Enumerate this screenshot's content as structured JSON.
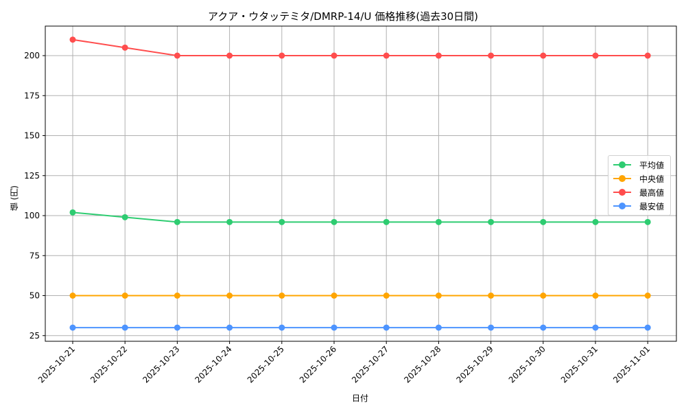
{
  "chart_data": {
    "type": "line",
    "title": "アクア・ウタッテミタ/DMRP-14/U 価格推移(過去30日間)",
    "xlabel": "日付",
    "ylabel": "値 (円)",
    "categories": [
      "2025-10-21",
      "2025-10-22",
      "2025-10-23",
      "2025-10-24",
      "2025-10-25",
      "2025-10-26",
      "2025-10-27",
      "2025-10-28",
      "2025-10-29",
      "2025-10-30",
      "2025-10-31",
      "2025-11-01"
    ],
    "series": [
      {
        "name": "平均値",
        "color": "#2ecc71",
        "values": [
          102,
          99,
          96,
          96,
          96,
          96,
          96,
          96,
          96,
          96,
          96,
          96
        ]
      },
      {
        "name": "中央値",
        "color": "#ffa500",
        "values": [
          50,
          50,
          50,
          50,
          50,
          50,
          50,
          50,
          50,
          50,
          50,
          50
        ]
      },
      {
        "name": "最高値",
        "color": "#ff4d4d",
        "values": [
          210,
          205,
          200,
          200,
          200,
          200,
          200,
          200,
          200,
          200,
          200,
          200
        ]
      },
      {
        "name": "最安値",
        "color": "#4d94ff",
        "values": [
          30,
          30,
          30,
          30,
          30,
          30,
          30,
          30,
          30,
          30,
          30,
          30
        ]
      }
    ],
    "yticks": [
      25,
      50,
      75,
      100,
      125,
      150,
      175,
      200
    ],
    "ylim": [
      21,
      219
    ],
    "grid": true,
    "legend_position": "center right",
    "marker": "circle"
  }
}
